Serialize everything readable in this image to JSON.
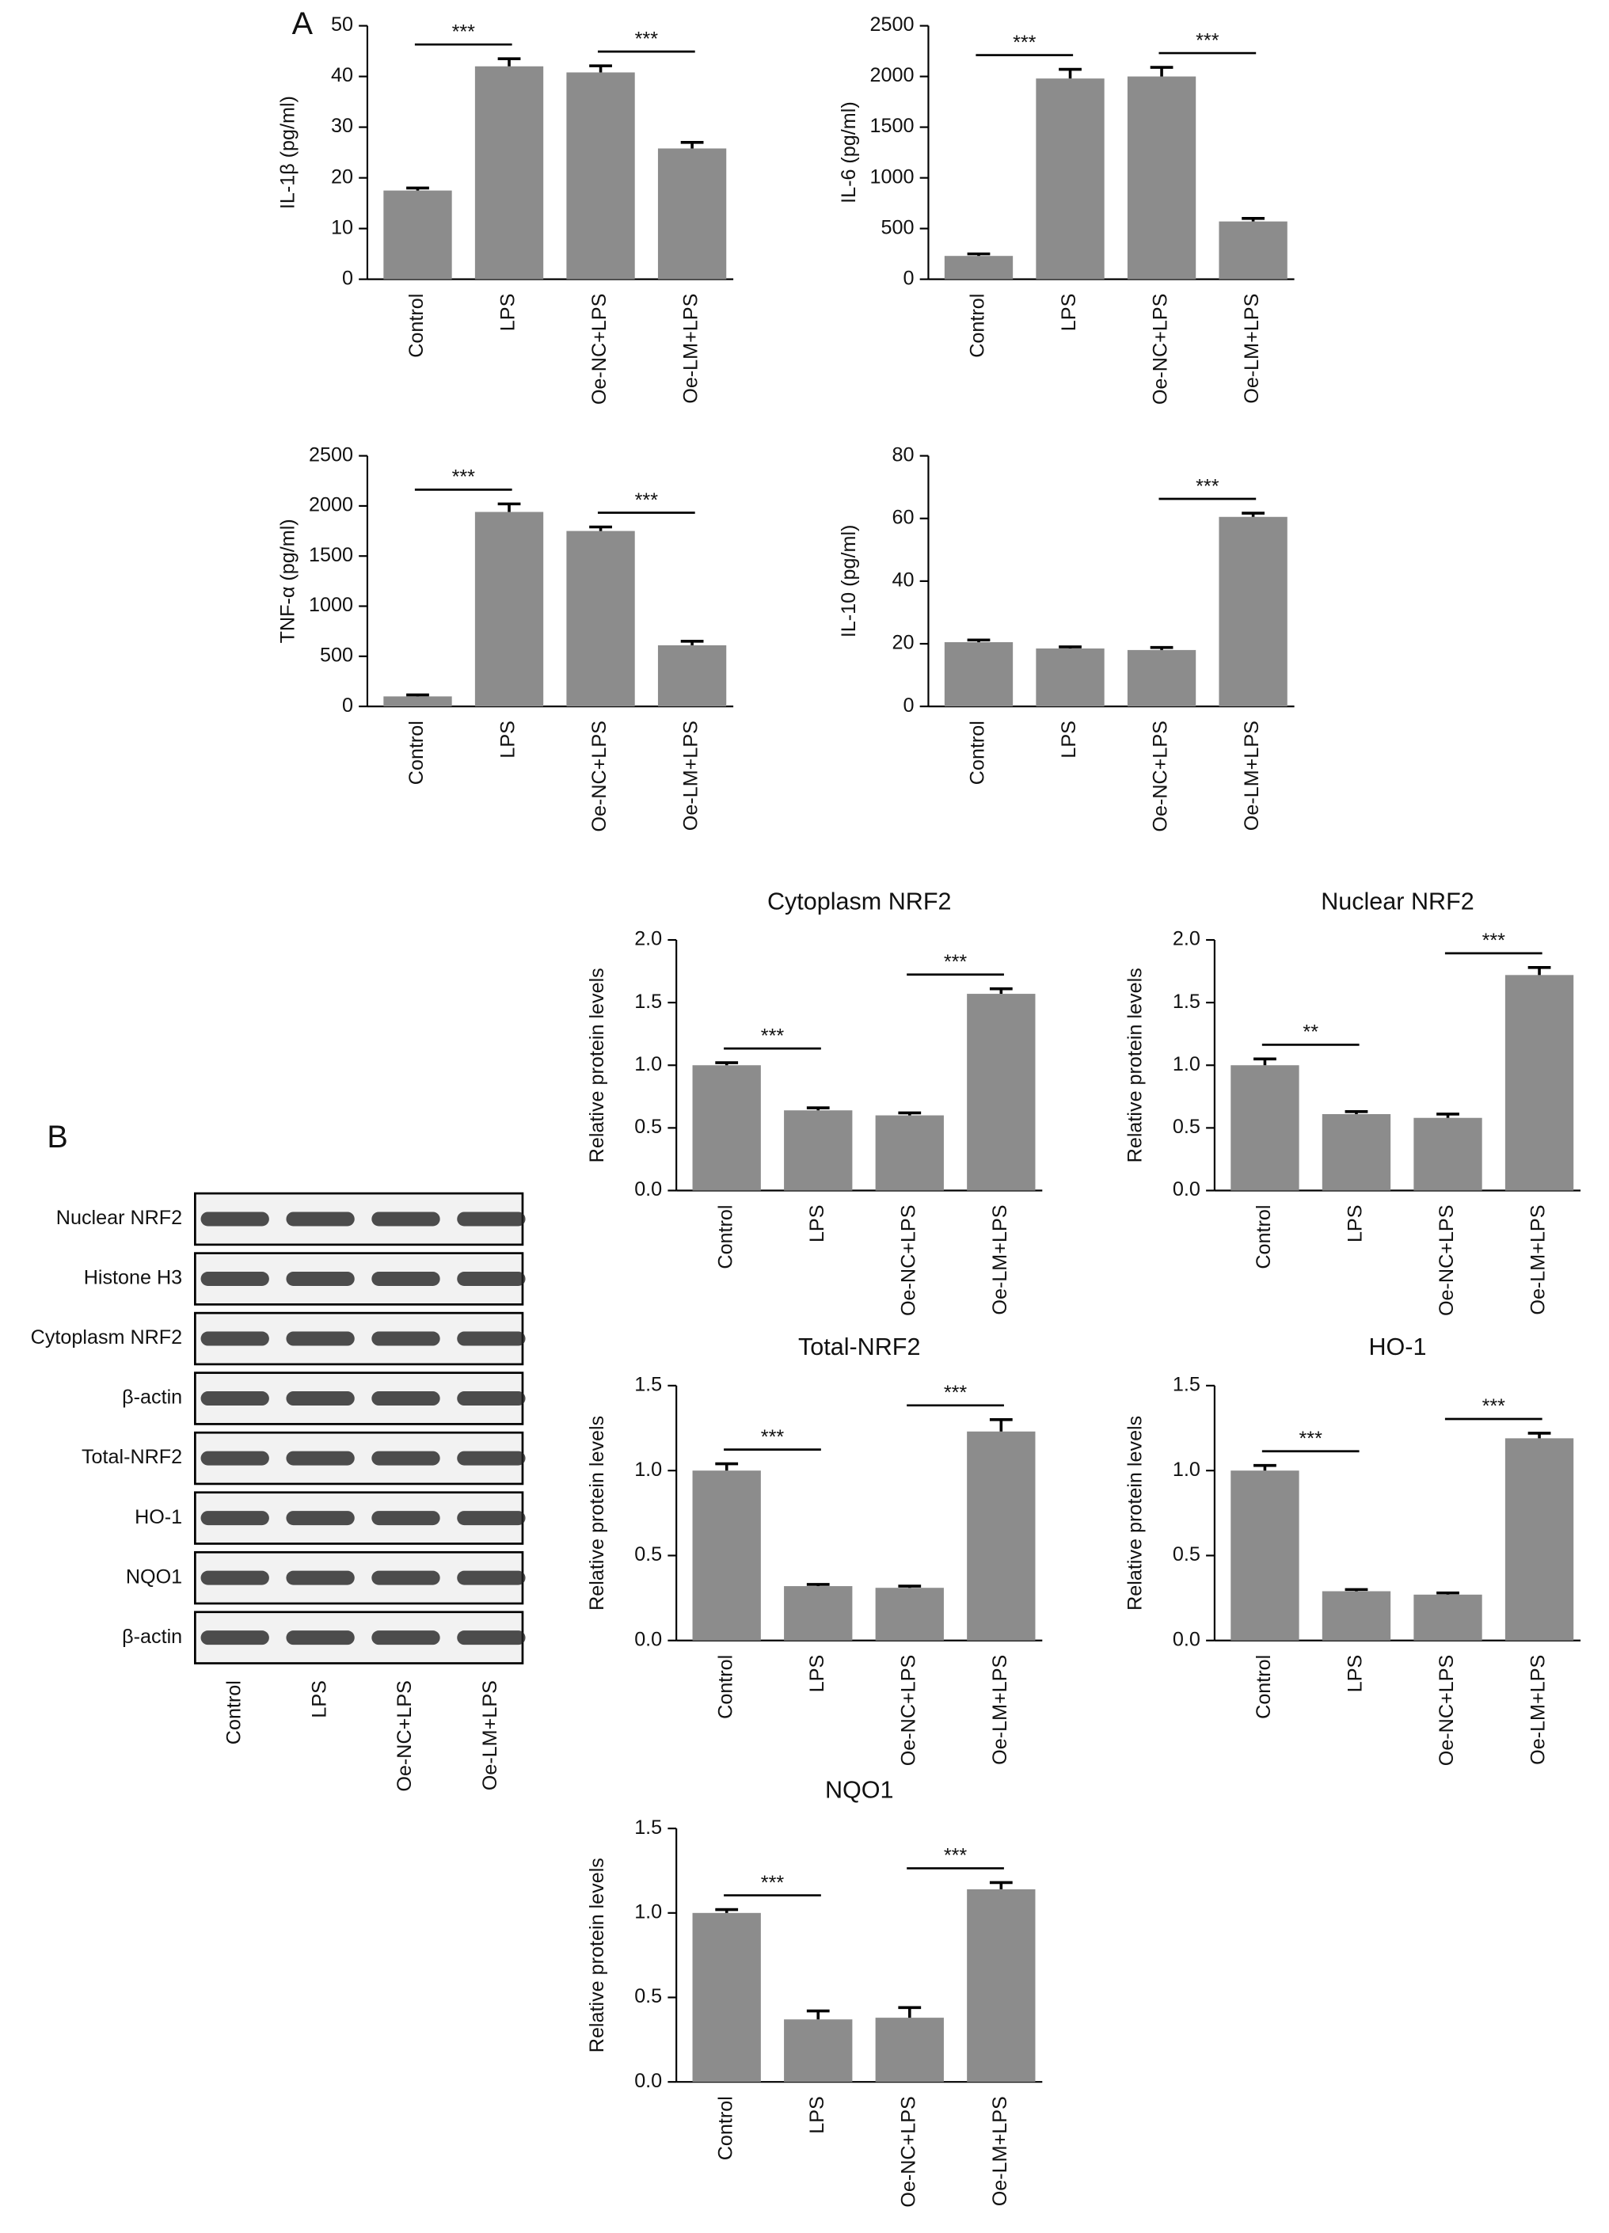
{
  "panels": [
    {
      "label": "A"
    },
    {
      "label": "B"
    }
  ],
  "blot": {
    "rows": [
      "Nuclear NRF2",
      "Histone H3",
      "Cytoplasm NRF2",
      "β-actin",
      "Total-NRF2",
      "HO-1",
      "NQO1",
      "β-actin"
    ],
    "lanes": [
      "Control",
      "LPS",
      "Oe-NC+LPS",
      "Oe-LM+LPS"
    ]
  },
  "chart_data": [
    {
      "type": "bar",
      "ylabel": "IL-1β (pg/ml)",
      "categories": [
        "Control",
        "LPS",
        "Oe-NC+LPS",
        "Oe-LM+LPS"
      ],
      "values": [
        17.5,
        42,
        40.8,
        25.8
      ],
      "errors": [
        0.5,
        1.5,
        1.3,
        1.2
      ],
      "color": "#8c8c8c",
      "ylim": [
        0,
        50
      ],
      "yticks": [
        0,
        10,
        20,
        30,
        40,
        50
      ],
      "significance": [
        {
          "between": [
            "Control",
            "LPS"
          ],
          "label": "***"
        },
        {
          "between": [
            "Oe-NC+LPS",
            "Oe-LM+LPS"
          ],
          "label": "***"
        }
      ]
    },
    {
      "type": "bar",
      "ylabel": "IL-6 (pg/ml)",
      "categories": [
        "Control",
        "LPS",
        "Oe-NC+LPS",
        "Oe-LM+LPS"
      ],
      "values": [
        230,
        1980,
        2000,
        570
      ],
      "errors": [
        20,
        90,
        90,
        30
      ],
      "color": "#8c8c8c",
      "ylim": [
        0,
        2500
      ],
      "yticks": [
        0,
        500,
        1000,
        1500,
        2000,
        2500
      ],
      "significance": [
        {
          "between": [
            "Control",
            "LPS"
          ],
          "label": "***"
        },
        {
          "between": [
            "Oe-NC+LPS",
            "Oe-LM+LPS"
          ],
          "label": "***"
        }
      ]
    },
    {
      "type": "bar",
      "ylabel": "TNF-α (pg/ml)",
      "categories": [
        "Control",
        "LPS",
        "Oe-NC+LPS",
        "Oe-LM+LPS"
      ],
      "values": [
        100,
        1940,
        1750,
        610
      ],
      "errors": [
        15,
        80,
        40,
        40
      ],
      "color": "#8c8c8c",
      "ylim": [
        0,
        2500
      ],
      "yticks": [
        0,
        500,
        1000,
        1500,
        2000,
        2500
      ],
      "significance": [
        {
          "between": [
            "Control",
            "LPS"
          ],
          "label": "***"
        },
        {
          "between": [
            "Oe-NC+LPS",
            "Oe-LM+LPS"
          ],
          "label": "***"
        }
      ]
    },
    {
      "type": "bar",
      "ylabel": "IL-10 (pg/ml)",
      "categories": [
        "Control",
        "LPS",
        "Oe-NC+LPS",
        "Oe-LM+LPS"
      ],
      "values": [
        20.5,
        18.5,
        18,
        60.5
      ],
      "errors": [
        0.7,
        0.5,
        0.8,
        1.2
      ],
      "color": "#8c8c8c",
      "ylim": [
        0,
        80
      ],
      "yticks": [
        0,
        20,
        40,
        60,
        80
      ],
      "significance": [
        {
          "between": [
            "Oe-NC+LPS",
            "Oe-LM+LPS"
          ],
          "label": "***"
        }
      ]
    },
    {
      "type": "bar",
      "title": "Cytoplasm NRF2",
      "ylabel": "Relative protein levels",
      "categories": [
        "Control",
        "LPS",
        "Oe-NC+LPS",
        "Oe-LM+LPS"
      ],
      "values": [
        1.0,
        0.64,
        0.6,
        1.57
      ],
      "errors": [
        0.02,
        0.02,
        0.02,
        0.04
      ],
      "color": "#8c8c8c",
      "ylim": [
        0,
        2
      ],
      "yticks": [
        {
          "value": 0,
          "label": "0.0"
        },
        0.5,
        {
          "value": 1,
          "label": "1.0"
        },
        1.5,
        {
          "value": 2,
          "label": "2.0"
        }
      ],
      "significance": [
        {
          "between": [
            "Control",
            "LPS"
          ],
          "label": "***"
        },
        {
          "between": [
            "Oe-NC+LPS",
            "Oe-LM+LPS"
          ],
          "label": "***"
        }
      ]
    },
    {
      "type": "bar",
      "title": "Nuclear NRF2",
      "ylabel": "Relative protein levels",
      "categories": [
        "Control",
        "LPS",
        "Oe-NC+LPS",
        "Oe-LM+LPS"
      ],
      "values": [
        1.0,
        0.61,
        0.58,
        1.72
      ],
      "errors": [
        0.05,
        0.02,
        0.03,
        0.06
      ],
      "color": "#8c8c8c",
      "ylim": [
        0,
        2
      ],
      "yticks": [
        {
          "value": 0,
          "label": "0.0"
        },
        0.5,
        {
          "value": 1,
          "label": "1.0"
        },
        1.5,
        {
          "value": 2,
          "label": "2.0"
        }
      ],
      "significance": [
        {
          "between": [
            "Control",
            "LPS"
          ],
          "label": "**"
        },
        {
          "between": [
            "Oe-NC+LPS",
            "Oe-LM+LPS"
          ],
          "label": "***"
        }
      ]
    },
    {
      "type": "bar",
      "title": "Total-NRF2",
      "ylabel": "Relative protein levels",
      "categories": [
        "Control",
        "LPS",
        "Oe-NC+LPS",
        "Oe-LM+LPS"
      ],
      "values": [
        1.0,
        0.32,
        0.31,
        1.23
      ],
      "errors": [
        0.04,
        0.01,
        0.01,
        0.07
      ],
      "color": "#8c8c8c",
      "ylim": [
        0,
        1.5
      ],
      "yticks": [
        {
          "value": 0,
          "label": "0.0"
        },
        0.5,
        {
          "value": 1,
          "label": "1.0"
        },
        1.5
      ],
      "significance": [
        {
          "between": [
            "Control",
            "LPS"
          ],
          "label": "***"
        },
        {
          "between": [
            "Oe-NC+LPS",
            "Oe-LM+LPS"
          ],
          "label": "***"
        }
      ]
    },
    {
      "type": "bar",
      "title": "HO-1",
      "ylabel": "Relative protein levels",
      "categories": [
        "Control",
        "LPS",
        "Oe-NC+LPS",
        "Oe-LM+LPS"
      ],
      "values": [
        1.0,
        0.29,
        0.27,
        1.19
      ],
      "errors": [
        0.03,
        0.01,
        0.01,
        0.03
      ],
      "color": "#8c8c8c",
      "ylim": [
        0,
        1.5
      ],
      "yticks": [
        {
          "value": 0,
          "label": "0.0"
        },
        0.5,
        {
          "value": 1,
          "label": "1.0"
        },
        1.5
      ],
      "significance": [
        {
          "between": [
            "Control",
            "LPS"
          ],
          "label": "***"
        },
        {
          "between": [
            "Oe-NC+LPS",
            "Oe-LM+LPS"
          ],
          "label": "***"
        }
      ]
    },
    {
      "type": "bar",
      "title": "NQO1",
      "ylabel": "Relative protein levels",
      "categories": [
        "Control",
        "LPS",
        "Oe-NC+LPS",
        "Oe-LM+LPS"
      ],
      "values": [
        1.0,
        0.37,
        0.38,
        1.14
      ],
      "errors": [
        0.02,
        0.05,
        0.06,
        0.04
      ],
      "color": "#8c8c8c",
      "ylim": [
        0,
        1.5
      ],
      "yticks": [
        {
          "value": 0,
          "label": "0.0"
        },
        0.5,
        {
          "value": 1,
          "label": "1.0"
        },
        1.5
      ],
      "significance": [
        {
          "between": [
            "Control",
            "LPS"
          ],
          "label": "***"
        },
        {
          "between": [
            "Oe-NC+LPS",
            "Oe-LM+LPS"
          ],
          "label": "***"
        }
      ]
    }
  ]
}
